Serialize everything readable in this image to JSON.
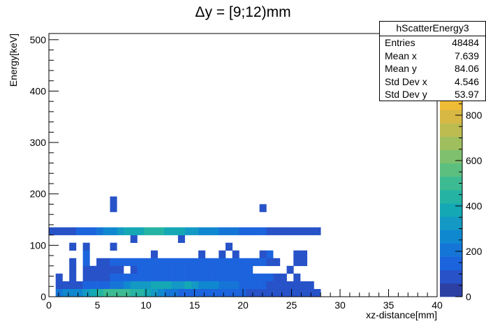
{
  "chart_data": {
    "type": "heatmap",
    "title": "Δy = [9;12)mm",
    "xlabel": "xz-distance[mm]",
    "ylabel": "Energy[keV]",
    "xlim": [
      0,
      40
    ],
    "ylim": [
      0,
      512
    ],
    "x_ticks": [
      "0",
      "5",
      "10",
      "15",
      "20",
      "25",
      "30",
      "35",
      "40"
    ],
    "y_ticks": [
      "0",
      "100",
      "200",
      "300",
      "400",
      "500"
    ],
    "z_ticks": [
      "0",
      "200",
      "400",
      "600",
      "800"
    ],
    "zlim": [
      0,
      1000
    ],
    "x_bin_width": 0.7,
    "y_bin_width": 15,
    "palette": [
      "#2c3fa3",
      "#2752c8",
      "#1c64de",
      "#1575d6",
      "#0f88d0",
      "#1399c4",
      "#14a8b5",
      "#25b4a3",
      "#3cbb92",
      "#5cbf80",
      "#7ec06d",
      "#9fbf5e",
      "#bdbc50",
      "#d8b844",
      "#efbc35",
      "#fdd626",
      "#f9f90f"
    ],
    "colorbar_partial_label": "00",
    "cells": [
      [
        9,
        12,
        1
      ],
      [
        9,
        11,
        1
      ],
      [
        31,
        11,
        1
      ],
      [
        12,
        7,
        1
      ],
      [
        19,
        7,
        1
      ],
      [
        3,
        6,
        1
      ],
      [
        5,
        6,
        1
      ],
      [
        9,
        6,
        1
      ],
      [
        26,
        6,
        1
      ],
      [
        5,
        5,
        2
      ],
      [
        15,
        5,
        1
      ],
      [
        22,
        5,
        1
      ],
      [
        25,
        5,
        1
      ],
      [
        27,
        5,
        1
      ],
      [
        31,
        5,
        1
      ],
      [
        32,
        5,
        2
      ],
      [
        36,
        5,
        1
      ],
      [
        37,
        5,
        1
      ],
      [
        3,
        4,
        1
      ],
      [
        5,
        4,
        2
      ],
      [
        7,
        4,
        1
      ],
      [
        8,
        4,
        1
      ],
      [
        9,
        4,
        2
      ],
      [
        10,
        4,
        2
      ],
      [
        11,
        4,
        2
      ],
      [
        12,
        4,
        2
      ],
      [
        13,
        4,
        2
      ],
      [
        14,
        4,
        2
      ],
      [
        15,
        4,
        2
      ],
      [
        16,
        4,
        2
      ],
      [
        17,
        4,
        2
      ],
      [
        18,
        4,
        2
      ],
      [
        19,
        4,
        2
      ],
      [
        20,
        4,
        2
      ],
      [
        21,
        4,
        2
      ],
      [
        22,
        4,
        2
      ],
      [
        23,
        4,
        2
      ],
      [
        24,
        4,
        2
      ],
      [
        25,
        4,
        2
      ],
      [
        26,
        4,
        2
      ],
      [
        27,
        4,
        2
      ],
      [
        28,
        4,
        2
      ],
      [
        29,
        4,
        2
      ],
      [
        30,
        4,
        2
      ],
      [
        31,
        4,
        2
      ],
      [
        32,
        4,
        1
      ],
      [
        33,
        4,
        1
      ],
      [
        36,
        4,
        1
      ],
      [
        37,
        4,
        1
      ],
      [
        3,
        3,
        1
      ],
      [
        5,
        3,
        1
      ],
      [
        6,
        3,
        1
      ],
      [
        7,
        3,
        1
      ],
      [
        8,
        3,
        1
      ],
      [
        9,
        3,
        1
      ],
      [
        10,
        3,
        1
      ],
      [
        12,
        3,
        1
      ],
      [
        13,
        3,
        2
      ],
      [
        14,
        3,
        2
      ],
      [
        15,
        3,
        2
      ],
      [
        16,
        3,
        2
      ],
      [
        17,
        3,
        2
      ],
      [
        18,
        3,
        2
      ],
      [
        19,
        3,
        2
      ],
      [
        20,
        3,
        2
      ],
      [
        21,
        3,
        2
      ],
      [
        22,
        3,
        2
      ],
      [
        23,
        3,
        2
      ],
      [
        24,
        3,
        2
      ],
      [
        25,
        3,
        2
      ],
      [
        26,
        3,
        2
      ],
      [
        27,
        3,
        2
      ],
      [
        28,
        3,
        2
      ],
      [
        29,
        3,
        2
      ],
      [
        35,
        3,
        1
      ],
      [
        1,
        2,
        1
      ],
      [
        3,
        2,
        1
      ],
      [
        5,
        2,
        1
      ],
      [
        6,
        2,
        1
      ],
      [
        7,
        2,
        1
      ],
      [
        8,
        2,
        1
      ],
      [
        9,
        2,
        2
      ],
      [
        10,
        2,
        2
      ],
      [
        11,
        2,
        2
      ],
      [
        12,
        2,
        2
      ],
      [
        13,
        2,
        2
      ],
      [
        14,
        2,
        2
      ],
      [
        15,
        2,
        2
      ],
      [
        16,
        2,
        2
      ],
      [
        17,
        2,
        2
      ],
      [
        18,
        2,
        2
      ],
      [
        19,
        2,
        2
      ],
      [
        20,
        2,
        2
      ],
      [
        21,
        2,
        2
      ],
      [
        22,
        2,
        2
      ],
      [
        23,
        2,
        2
      ],
      [
        24,
        2,
        2
      ],
      [
        25,
        2,
        2
      ],
      [
        26,
        2,
        2
      ],
      [
        27,
        2,
        2
      ],
      [
        28,
        2,
        2
      ],
      [
        29,
        2,
        2
      ],
      [
        30,
        2,
        2
      ],
      [
        31,
        2,
        2
      ],
      [
        32,
        2,
        2
      ],
      [
        33,
        2,
        1
      ],
      [
        34,
        2,
        1
      ],
      [
        36,
        2,
        1
      ],
      [
        1,
        1,
        1
      ],
      [
        2,
        1,
        1
      ],
      [
        3,
        1,
        1
      ],
      [
        4,
        1,
        1
      ],
      [
        5,
        1,
        2
      ],
      [
        6,
        1,
        2
      ],
      [
        7,
        1,
        2
      ],
      [
        8,
        1,
        2
      ],
      [
        9,
        1,
        3
      ],
      [
        10,
        1,
        3
      ],
      [
        11,
        1,
        4
      ],
      [
        12,
        1,
        5
      ],
      [
        13,
        1,
        5
      ],
      [
        14,
        1,
        5
      ],
      [
        15,
        1,
        6
      ],
      [
        16,
        1,
        6
      ],
      [
        17,
        1,
        6
      ],
      [
        18,
        1,
        5
      ],
      [
        19,
        1,
        5
      ],
      [
        20,
        1,
        6
      ],
      [
        21,
        1,
        5
      ],
      [
        22,
        1,
        4
      ],
      [
        23,
        1,
        4
      ],
      [
        24,
        1,
        4
      ],
      [
        25,
        1,
        3
      ],
      [
        26,
        1,
        3
      ],
      [
        27,
        1,
        3
      ],
      [
        28,
        1,
        2
      ],
      [
        29,
        1,
        2
      ],
      [
        30,
        1,
        2
      ],
      [
        31,
        1,
        2
      ],
      [
        32,
        1,
        1
      ],
      [
        33,
        1,
        1
      ],
      [
        34,
        1,
        1
      ],
      [
        35,
        1,
        1
      ],
      [
        36,
        1,
        1
      ],
      [
        37,
        1,
        1
      ],
      [
        38,
        1,
        1
      ],
      [
        1,
        0,
        3
      ],
      [
        2,
        0,
        4
      ],
      [
        3,
        0,
        4
      ],
      [
        4,
        0,
        4
      ],
      [
        5,
        0,
        5
      ],
      [
        6,
        0,
        6
      ],
      [
        7,
        0,
        7
      ],
      [
        8,
        0,
        8
      ],
      [
        9,
        0,
        8
      ],
      [
        10,
        0,
        8
      ],
      [
        11,
        0,
        8
      ],
      [
        12,
        0,
        7
      ],
      [
        13,
        0,
        7
      ],
      [
        14,
        0,
        6
      ],
      [
        15,
        0,
        5
      ],
      [
        16,
        0,
        4
      ],
      [
        17,
        0,
        3
      ],
      [
        18,
        0,
        3
      ],
      [
        19,
        0,
        2
      ],
      [
        20,
        0,
        2
      ],
      [
        21,
        0,
        2
      ],
      [
        22,
        0,
        2
      ],
      [
        23,
        0,
        2
      ],
      [
        24,
        0,
        2
      ],
      [
        25,
        0,
        2
      ],
      [
        26,
        0,
        2
      ],
      [
        27,
        0,
        2
      ],
      [
        28,
        0,
        2
      ],
      [
        29,
        0,
        1
      ],
      [
        30,
        0,
        1
      ],
      [
        31,
        0,
        1
      ],
      [
        32,
        0,
        1
      ],
      [
        33,
        0,
        1
      ],
      [
        34,
        0,
        1
      ],
      [
        35,
        0,
        1
      ],
      [
        36,
        0,
        1
      ],
      [
        37,
        0,
        1
      ],
      [
        38,
        0,
        1
      ],
      [
        39,
        0,
        1
      ],
      [
        0,
        8,
        1
      ],
      [
        1,
        8,
        1
      ],
      [
        2,
        8,
        1
      ],
      [
        3,
        8,
        1
      ],
      [
        4,
        8,
        2
      ],
      [
        5,
        8,
        2
      ],
      [
        6,
        8,
        2
      ],
      [
        7,
        8,
        3
      ],
      [
        8,
        8,
        4
      ],
      [
        9,
        8,
        4
      ],
      [
        10,
        8,
        5
      ],
      [
        11,
        8,
        6
      ],
      [
        12,
        8,
        6
      ],
      [
        13,
        8,
        6
      ],
      [
        14,
        8,
        7
      ],
      [
        15,
        8,
        7
      ],
      [
        16,
        8,
        7
      ],
      [
        17,
        8,
        6
      ],
      [
        18,
        8,
        6
      ],
      [
        19,
        8,
        6
      ],
      [
        20,
        8,
        5
      ],
      [
        21,
        8,
        5
      ],
      [
        22,
        8,
        4
      ],
      [
        23,
        8,
        4
      ],
      [
        24,
        8,
        4
      ],
      [
        25,
        8,
        3
      ],
      [
        26,
        8,
        3
      ],
      [
        27,
        8,
        3
      ],
      [
        28,
        8,
        2
      ],
      [
        29,
        8,
        2
      ],
      [
        30,
        8,
        2
      ],
      [
        31,
        8,
        2
      ],
      [
        32,
        8,
        1
      ],
      [
        33,
        8,
        1
      ],
      [
        34,
        8,
        1
      ],
      [
        35,
        8,
        1
      ],
      [
        36,
        8,
        1
      ],
      [
        37,
        8,
        1
      ],
      [
        38,
        8,
        1
      ],
      [
        39,
        8,
        1
      ]
    ]
  },
  "stats": {
    "name": "hScatterEnergy3",
    "rows": [
      {
        "label": "Entries",
        "value": "48484"
      },
      {
        "label": "Mean x",
        "value": "7.639"
      },
      {
        "label": "Mean y",
        "value": "84.06"
      },
      {
        "label": "Std Dev x",
        "value": "4.546"
      },
      {
        "label": "Std Dev y",
        "value": "53.97"
      }
    ]
  }
}
